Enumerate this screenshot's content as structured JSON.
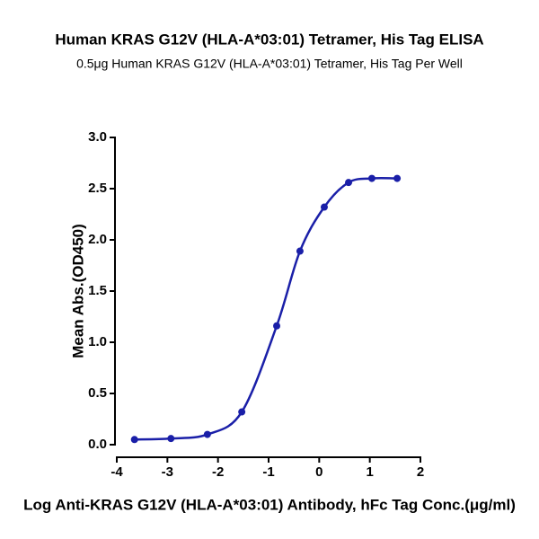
{
  "chart_data": {
    "type": "scatter",
    "title": "Human KRAS G12V (HLA-A*03:01) Tetramer, His Tag ELISA",
    "subtitle": "0.5μg Human KRAS G12V (HLA-A*03:01) Tetramer, His Tag Per Well",
    "x_label": "Log Anti-KRAS G12V (HLA-A*03:01) Antibody, hFc Tag Conc.(μg/ml)",
    "y_label": "Mean Abs.(OD450)",
    "x": [
      -3.65,
      -2.93,
      -2.21,
      -1.53,
      -0.84,
      -0.38,
      0.1,
      0.58,
      1.04,
      1.54
    ],
    "values": [
      0.05,
      0.06,
      0.1,
      0.32,
      1.16,
      1.89,
      2.32,
      2.56,
      2.6,
      2.6
    ],
    "color": "#1a1fa8",
    "line": true,
    "xlim": [
      -4,
      2
    ],
    "xticks": [
      -4,
      -3,
      -2,
      -1,
      0,
      1,
      2
    ],
    "ylim": [
      0,
      3
    ],
    "yticks": [
      {
        "value": 0,
        "label": "0.0"
      },
      {
        "value": 0.5,
        "label": "0.5"
      },
      {
        "value": 1,
        "label": "1.0"
      },
      {
        "value": 1.5,
        "label": "1.5"
      },
      {
        "value": 2,
        "label": "2.0"
      },
      {
        "value": 2.5,
        "label": "2.5"
      },
      {
        "value": 3,
        "label": "3.0"
      }
    ]
  }
}
